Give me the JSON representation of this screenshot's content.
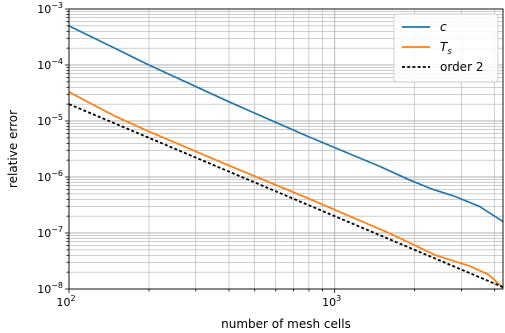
{
  "chart_data": {
    "type": "line",
    "xlabel": "number of mesh cells",
    "ylabel": "relative error",
    "xscale": "log",
    "yscale": "log",
    "xlim": [
      100,
      4300
    ],
    "ylim": [
      1e-08,
      0.001
    ],
    "grid": "both major and minor",
    "legend_position": "top-right",
    "x_ticks": [
      {
        "value": 100,
        "base": "10",
        "exp": "2"
      },
      {
        "value": 1000,
        "base": "10",
        "exp": "3"
      }
    ],
    "y_ticks": [
      {
        "value": 1e-08,
        "base": "10",
        "exp": "−8"
      },
      {
        "value": 1e-07,
        "base": "10",
        "exp": "−7"
      },
      {
        "value": 1e-06,
        "base": "10",
        "exp": "−6"
      },
      {
        "value": 1e-05,
        "base": "10",
        "exp": "−5"
      },
      {
        "value": 0.0001,
        "base": "10",
        "exp": "−4"
      },
      {
        "value": 0.001,
        "base": "10",
        "exp": "−3"
      }
    ],
    "series": [
      {
        "name": "c",
        "name_sub": "",
        "color": "#1f77b4",
        "dash": "solid",
        "x": [
          100,
          200,
          400,
          800,
          1500,
          1900,
          2300,
          2800,
          3500,
          4300
        ],
        "y": [
          0.0005,
          0.0001,
          2.2e-05,
          5.2e-06,
          1.5e-06,
          9e-07,
          6.2e-07,
          4.6e-07,
          3e-07,
          1.6e-07
        ]
      },
      {
        "name": "T",
        "name_sub": "s",
        "color": "#ff7f0e",
        "dash": "solid",
        "x": [
          100,
          150,
          200,
          400,
          800,
          1600,
          2400,
          3200,
          3800,
          4300
        ],
        "y": [
          3.3e-05,
          1.2e-05,
          6.5e-06,
          1.6e-06,
          4.1e-07,
          1e-07,
          4e-08,
          2.6e-08,
          1.8e-08,
          1.05e-08
        ]
      },
      {
        "name": "order 2",
        "name_sub": "",
        "color": "#000000",
        "dash": "dotted",
        "x": [
          100,
          4300
        ],
        "y": [
          2e-05,
          1.08e-08
        ]
      }
    ]
  }
}
